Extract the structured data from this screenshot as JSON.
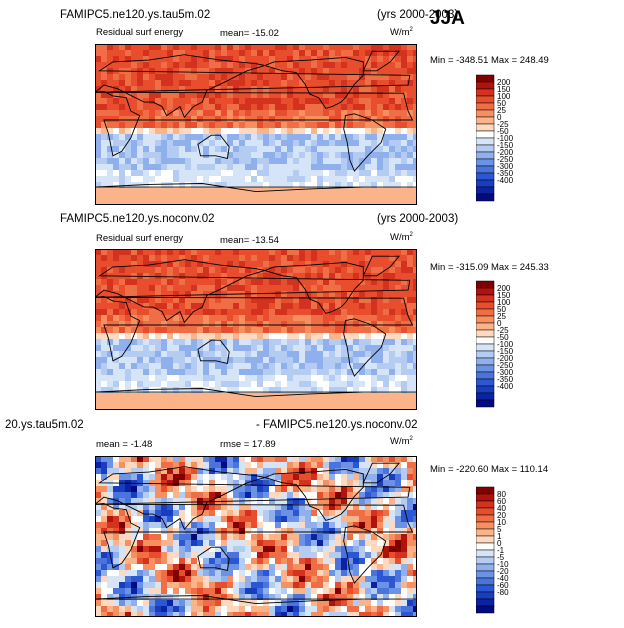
{
  "season": "JJA",
  "panels": [
    {
      "case_title": "FAMIPC5.ne120.ys.tau5m.02",
      "years": "(yrs 2000-2003)",
      "variable": "Residual surf energy",
      "stat_text": "mean=  -15.02",
      "units_base": "W/m",
      "units_exp": "2",
      "minmax": "Min = -348.51  Max = 248.49",
      "colorbar_labels": [
        "200",
        "150",
        "100",
        "50",
        "25",
        "0",
        "-25",
        "-50",
        "-100",
        "-150",
        "-200",
        "-250",
        "-300",
        "-350",
        "-400"
      ],
      "colorbar_colors": [
        "#800000",
        "#b0120c",
        "#d3321e",
        "#e84d2e",
        "#f06e45",
        "#f79060",
        "#fbb48a",
        "#fdd9c0",
        "#ffffff",
        "#d6e4f7",
        "#b4ccf1",
        "#8fb0ec",
        "#6b92e4",
        "#4a74dc",
        "#2c57d3",
        "#183dbf",
        "#0b22a4",
        "#010a80"
      ]
    },
    {
      "case_title": "FAMIPC5.ne120.ys.noconv.02",
      "years": "(yrs 2000-2003)",
      "variable": "Residual surf energy",
      "stat_text": "mean=  -13.54",
      "units_base": "W/m",
      "units_exp": "2",
      "minmax": "Min = -315.09  Max = 245.33",
      "colorbar_labels": [
        "200",
        "150",
        "100",
        "50",
        "25",
        "0",
        "-25",
        "-50",
        "-100",
        "-150",
        "-200",
        "-250",
        "-300",
        "-350",
        "-400"
      ],
      "colorbar_colors": [
        "#800000",
        "#b0120c",
        "#d3321e",
        "#e84d2e",
        "#f06e45",
        "#f79060",
        "#fbb48a",
        "#fdd9c0",
        "#ffffff",
        "#d6e4f7",
        "#b4ccf1",
        "#8fb0ec",
        "#6b92e4",
        "#4a74dc",
        "#2c57d3",
        "#183dbf",
        "#0b22a4",
        "#010a80"
      ]
    },
    {
      "case_title": "20.ys.tau5m.02",
      "case_title_right": "- FAMIPC5.ne120.ys.noconv.02",
      "stat_text": "mean =  -1.48",
      "rmse_text": "rmse =  17.89",
      "units_base": "W/m",
      "units_exp": "2",
      "minmax": "Min = -220.60  Max = 110.14",
      "colorbar_labels": [
        "80",
        "60",
        "40",
        "20",
        "10",
        "5",
        "1",
        "0",
        "-1",
        "-5",
        "-10",
        "-20",
        "-40",
        "-60",
        "-80"
      ],
      "colorbar_colors": [
        "#800000",
        "#b0120c",
        "#d3321e",
        "#e84d2e",
        "#f06e45",
        "#f79060",
        "#fbb48a",
        "#fdd9c0",
        "#ffffff",
        "#d6e4f7",
        "#b4ccf1",
        "#8fb0ec",
        "#6b92e4",
        "#4a74dc",
        "#2c57d3",
        "#183dbf",
        "#0b22a4",
        "#010a80"
      ]
    }
  ],
  "chart_data": [
    {
      "type": "heatmap",
      "title": "FAMIPC5.ne120.ys.tau5m.02 (yrs 2000-2003)",
      "variable": "Residual surf energy",
      "units": "W/m2",
      "mean": -15.02,
      "min": -348.51,
      "max": 248.49,
      "levels": [
        200,
        150,
        100,
        50,
        25,
        0,
        -25,
        -50,
        -100,
        -150,
        -200,
        -250,
        -300,
        -350,
        -400
      ]
    },
    {
      "type": "heatmap",
      "title": "FAMIPC5.ne120.ys.noconv.02 (yrs 2000-2003)",
      "variable": "Residual surf energy",
      "units": "W/m2",
      "mean": -13.54,
      "min": -315.09,
      "max": 245.33,
      "levels": [
        200,
        150,
        100,
        50,
        25,
        0,
        -25,
        -50,
        -100,
        -150,
        -200,
        -250,
        -300,
        -350,
        -400
      ]
    },
    {
      "type": "heatmap",
      "title": "20.ys.tau5m.02 - FAMIPC5.ne120.ys.noconv.02",
      "units": "W/m2",
      "mean": -1.48,
      "rmse": 17.89,
      "min": -220.6,
      "max": 110.14,
      "levels": [
        80,
        60,
        40,
        20,
        10,
        5,
        1,
        0,
        -1,
        -5,
        -10,
        -20,
        -40,
        -60,
        -80
      ]
    }
  ]
}
